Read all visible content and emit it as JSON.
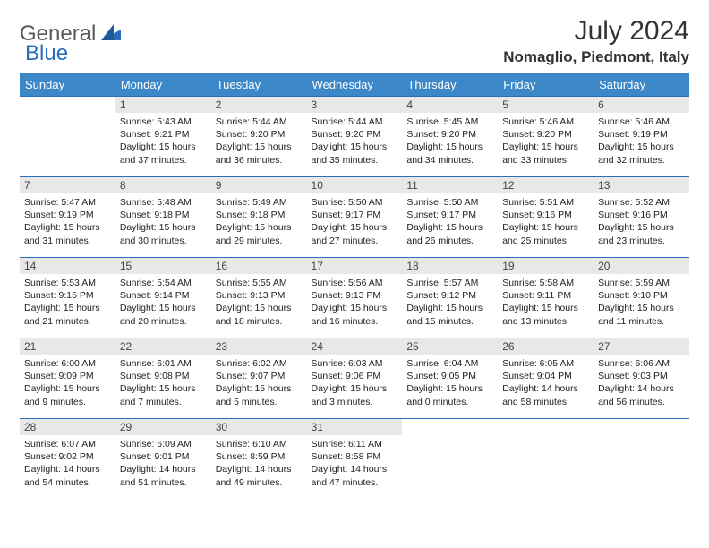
{
  "logo": {
    "text1": "General",
    "text2": "Blue"
  },
  "title": "July 2024",
  "location": "Nomaglio, Piedmont, Italy",
  "colors": {
    "header_bg": "#3b87c8",
    "header_text": "#ffffff",
    "border": "#2a6db8",
    "daynum_bg": "#e8e8e8",
    "text": "#222222",
    "logo_gray": "#5a5a5a",
    "logo_blue": "#2a6db8"
  },
  "weekdays": [
    "Sunday",
    "Monday",
    "Tuesday",
    "Wednesday",
    "Thursday",
    "Friday",
    "Saturday"
  ],
  "weeks": [
    [
      null,
      {
        "n": "1",
        "sr": "Sunrise: 5:43 AM",
        "ss": "Sunset: 9:21 PM",
        "dl1": "Daylight: 15 hours",
        "dl2": "and 37 minutes."
      },
      {
        "n": "2",
        "sr": "Sunrise: 5:44 AM",
        "ss": "Sunset: 9:20 PM",
        "dl1": "Daylight: 15 hours",
        "dl2": "and 36 minutes."
      },
      {
        "n": "3",
        "sr": "Sunrise: 5:44 AM",
        "ss": "Sunset: 9:20 PM",
        "dl1": "Daylight: 15 hours",
        "dl2": "and 35 minutes."
      },
      {
        "n": "4",
        "sr": "Sunrise: 5:45 AM",
        "ss": "Sunset: 9:20 PM",
        "dl1": "Daylight: 15 hours",
        "dl2": "and 34 minutes."
      },
      {
        "n": "5",
        "sr": "Sunrise: 5:46 AM",
        "ss": "Sunset: 9:20 PM",
        "dl1": "Daylight: 15 hours",
        "dl2": "and 33 minutes."
      },
      {
        "n": "6",
        "sr": "Sunrise: 5:46 AM",
        "ss": "Sunset: 9:19 PM",
        "dl1": "Daylight: 15 hours",
        "dl2": "and 32 minutes."
      }
    ],
    [
      {
        "n": "7",
        "sr": "Sunrise: 5:47 AM",
        "ss": "Sunset: 9:19 PM",
        "dl1": "Daylight: 15 hours",
        "dl2": "and 31 minutes."
      },
      {
        "n": "8",
        "sr": "Sunrise: 5:48 AM",
        "ss": "Sunset: 9:18 PM",
        "dl1": "Daylight: 15 hours",
        "dl2": "and 30 minutes."
      },
      {
        "n": "9",
        "sr": "Sunrise: 5:49 AM",
        "ss": "Sunset: 9:18 PM",
        "dl1": "Daylight: 15 hours",
        "dl2": "and 29 minutes."
      },
      {
        "n": "10",
        "sr": "Sunrise: 5:50 AM",
        "ss": "Sunset: 9:17 PM",
        "dl1": "Daylight: 15 hours",
        "dl2": "and 27 minutes."
      },
      {
        "n": "11",
        "sr": "Sunrise: 5:50 AM",
        "ss": "Sunset: 9:17 PM",
        "dl1": "Daylight: 15 hours",
        "dl2": "and 26 minutes."
      },
      {
        "n": "12",
        "sr": "Sunrise: 5:51 AM",
        "ss": "Sunset: 9:16 PM",
        "dl1": "Daylight: 15 hours",
        "dl2": "and 25 minutes."
      },
      {
        "n": "13",
        "sr": "Sunrise: 5:52 AM",
        "ss": "Sunset: 9:16 PM",
        "dl1": "Daylight: 15 hours",
        "dl2": "and 23 minutes."
      }
    ],
    [
      {
        "n": "14",
        "sr": "Sunrise: 5:53 AM",
        "ss": "Sunset: 9:15 PM",
        "dl1": "Daylight: 15 hours",
        "dl2": "and 21 minutes."
      },
      {
        "n": "15",
        "sr": "Sunrise: 5:54 AM",
        "ss": "Sunset: 9:14 PM",
        "dl1": "Daylight: 15 hours",
        "dl2": "and 20 minutes."
      },
      {
        "n": "16",
        "sr": "Sunrise: 5:55 AM",
        "ss": "Sunset: 9:13 PM",
        "dl1": "Daylight: 15 hours",
        "dl2": "and 18 minutes."
      },
      {
        "n": "17",
        "sr": "Sunrise: 5:56 AM",
        "ss": "Sunset: 9:13 PM",
        "dl1": "Daylight: 15 hours",
        "dl2": "and 16 minutes."
      },
      {
        "n": "18",
        "sr": "Sunrise: 5:57 AM",
        "ss": "Sunset: 9:12 PM",
        "dl1": "Daylight: 15 hours",
        "dl2": "and 15 minutes."
      },
      {
        "n": "19",
        "sr": "Sunrise: 5:58 AM",
        "ss": "Sunset: 9:11 PM",
        "dl1": "Daylight: 15 hours",
        "dl2": "and 13 minutes."
      },
      {
        "n": "20",
        "sr": "Sunrise: 5:59 AM",
        "ss": "Sunset: 9:10 PM",
        "dl1": "Daylight: 15 hours",
        "dl2": "and 11 minutes."
      }
    ],
    [
      {
        "n": "21",
        "sr": "Sunrise: 6:00 AM",
        "ss": "Sunset: 9:09 PM",
        "dl1": "Daylight: 15 hours",
        "dl2": "and 9 minutes."
      },
      {
        "n": "22",
        "sr": "Sunrise: 6:01 AM",
        "ss": "Sunset: 9:08 PM",
        "dl1": "Daylight: 15 hours",
        "dl2": "and 7 minutes."
      },
      {
        "n": "23",
        "sr": "Sunrise: 6:02 AM",
        "ss": "Sunset: 9:07 PM",
        "dl1": "Daylight: 15 hours",
        "dl2": "and 5 minutes."
      },
      {
        "n": "24",
        "sr": "Sunrise: 6:03 AM",
        "ss": "Sunset: 9:06 PM",
        "dl1": "Daylight: 15 hours",
        "dl2": "and 3 minutes."
      },
      {
        "n": "25",
        "sr": "Sunrise: 6:04 AM",
        "ss": "Sunset: 9:05 PM",
        "dl1": "Daylight: 15 hours",
        "dl2": "and 0 minutes."
      },
      {
        "n": "26",
        "sr": "Sunrise: 6:05 AM",
        "ss": "Sunset: 9:04 PM",
        "dl1": "Daylight: 14 hours",
        "dl2": "and 58 minutes."
      },
      {
        "n": "27",
        "sr": "Sunrise: 6:06 AM",
        "ss": "Sunset: 9:03 PM",
        "dl1": "Daylight: 14 hours",
        "dl2": "and 56 minutes."
      }
    ],
    [
      {
        "n": "28",
        "sr": "Sunrise: 6:07 AM",
        "ss": "Sunset: 9:02 PM",
        "dl1": "Daylight: 14 hours",
        "dl2": "and 54 minutes."
      },
      {
        "n": "29",
        "sr": "Sunrise: 6:09 AM",
        "ss": "Sunset: 9:01 PM",
        "dl1": "Daylight: 14 hours",
        "dl2": "and 51 minutes."
      },
      {
        "n": "30",
        "sr": "Sunrise: 6:10 AM",
        "ss": "Sunset: 8:59 PM",
        "dl1": "Daylight: 14 hours",
        "dl2": "and 49 minutes."
      },
      {
        "n": "31",
        "sr": "Sunrise: 6:11 AM",
        "ss": "Sunset: 8:58 PM",
        "dl1": "Daylight: 14 hours",
        "dl2": "and 47 minutes."
      },
      null,
      null,
      null
    ]
  ]
}
